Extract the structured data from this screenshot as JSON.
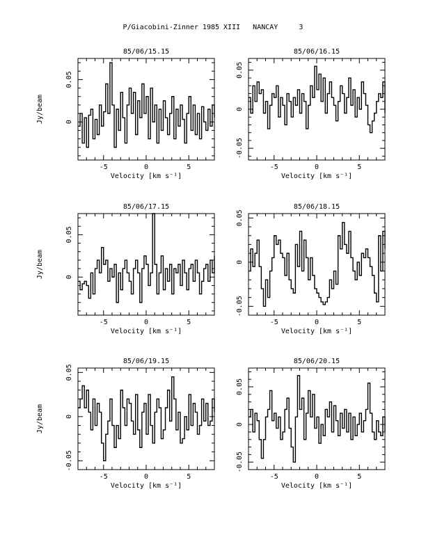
{
  "page": {
    "title": "P/Giacobini-Zinner 1985 XIII   NANCAY     3"
  },
  "chart_data": [
    {
      "type": "line",
      "title": "85/06/15.15",
      "xlabel": "Velocity [km s⁻¹]",
      "ylabel": "Jy/beam",
      "xlim": [
        -8,
        8
      ],
      "ylim": [
        -0.045,
        0.075
      ],
      "xticks": [
        -5,
        0,
        5
      ],
      "yticks": [
        0,
        0.05
      ],
      "ytick_labels": [
        "0",
        "0.05"
      ],
      "x_start": -8,
      "x_step": 0.25,
      "values": [
        -0.005,
        0.01,
        -0.025,
        0.005,
        -0.03,
        0.008,
        0.015,
        -0.02,
        0.003,
        -0.015,
        0.02,
        -0.005,
        0.012,
        0.045,
        0.01,
        0.07,
        0.02,
        -0.03,
        0.015,
        -0.01,
        0.035,
        0.005,
        -0.025,
        0.02,
        0.04,
        0.01,
        0.035,
        -0.015,
        0.025,
        0.005,
        0.045,
        0.01,
        0.03,
        -0.02,
        0.04,
        0.0,
        0.02,
        -0.025,
        0.015,
        -0.01,
        0.025,
        0.005,
        -0.015,
        0.01,
        0.03,
        -0.02,
        0.015,
        -0.005,
        0.02,
        0.003,
        -0.025,
        0.01,
        0.03,
        -0.01,
        0.02,
        -0.015,
        0.01,
        -0.02,
        0.018,
        0.0,
        -0.01,
        0.015,
        -0.005,
        0.02,
        0.005
      ]
    },
    {
      "type": "line",
      "title": "85/06/16.15",
      "xlabel": "Velocity [km s⁻¹]",
      "ylabel": "",
      "xlim": [
        -8,
        8
      ],
      "ylim": [
        -0.065,
        0.065
      ],
      "xticks": [
        -5,
        0,
        5
      ],
      "yticks": [
        -0.05,
        0,
        0.05
      ],
      "ytick_labels": [
        "-0.05",
        "0",
        "0.05"
      ],
      "x_start": -8,
      "x_step": 0.25,
      "values": [
        0.015,
        -0.005,
        0.03,
        0.01,
        0.035,
        0.02,
        0.025,
        -0.005,
        0.01,
        -0.025,
        0.005,
        0.02,
        0.015,
        0.03,
        -0.01,
        0.015,
        0.005,
        -0.02,
        0.02,
        0.01,
        -0.01,
        0.015,
        0.005,
        0.025,
        -0.005,
        0.02,
        0.01,
        -0.025,
        0.005,
        0.03,
        0.015,
        0.055,
        0.025,
        0.045,
        0.01,
        0.04,
        -0.005,
        0.02,
        0.035,
        0.015,
        0.005,
        -0.015,
        0.01,
        0.03,
        0.02,
        -0.005,
        0.015,
        0.04,
        0.005,
        0.025,
        -0.01,
        0.015,
        0.0,
        0.035,
        0.02,
        0.005,
        -0.02,
        -0.03,
        -0.015,
        -0.005,
        0.01,
        0.02,
        0.015,
        0.035,
        -0.005
      ]
    },
    {
      "type": "line",
      "title": "85/06/17.15",
      "xlabel": "Velocity [km s⁻¹]",
      "ylabel": "Jy/beam",
      "xlim": [
        -8,
        8
      ],
      "ylim": [
        -0.045,
        0.075
      ],
      "xticks": [
        -5,
        0,
        5
      ],
      "yticks": [
        0,
        0.05
      ],
      "ytick_labels": [
        "0",
        "0.05"
      ],
      "x_start": -8,
      "x_step": 0.25,
      "values": [
        -0.005,
        -0.015,
        -0.008,
        -0.005,
        -0.01,
        -0.025,
        0.005,
        -0.02,
        0.01,
        0.02,
        0.005,
        0.035,
        0.015,
        0.02,
        -0.005,
        0.01,
        0.0,
        0.015,
        -0.03,
        0.005,
        -0.015,
        0.01,
        0.02,
        0.005,
        -0.005,
        -0.02,
        0.01,
        0.02,
        0.005,
        -0.03,
        0.01,
        0.025,
        0.015,
        -0.01,
        0.005,
        0.075,
        0.015,
        -0.02,
        0.005,
        0.025,
        -0.015,
        0.01,
        -0.005,
        0.015,
        -0.02,
        0.01,
        0.005,
        0.015,
        -0.01,
        0.02,
        0.005,
        -0.015,
        0.01,
        0.015,
        -0.005,
        0.02,
        0.005,
        -0.02,
        -0.005,
        0.01,
        0.015,
        -0.005,
        0.02,
        0.005,
        0.025
      ]
    },
    {
      "type": "line",
      "title": "85/06/18.15",
      "xlabel": "Velocity [km s⁻¹]",
      "ylabel": "",
      "xlim": [
        -8,
        8
      ],
      "ylim": [
        -0.06,
        0.055
      ],
      "xticks": [
        -5,
        0,
        5
      ],
      "yticks": [
        -0.05,
        0,
        0.05
      ],
      "ytick_labels": [
        "-0.05",
        "0",
        "0.05"
      ],
      "x_start": -8,
      "x_step": 0.25,
      "values": [
        -0.01,
        0.015,
        -0.005,
        0.01,
        0.025,
        -0.005,
        -0.03,
        -0.05,
        -0.02,
        -0.04,
        -0.01,
        0.005,
        0.03,
        0.02,
        0.025,
        0.01,
        0.005,
        -0.015,
        0.01,
        -0.02,
        -0.03,
        -0.035,
        0.02,
        -0.005,
        0.035,
        -0.01,
        0.025,
        0.005,
        -0.02,
        0.005,
        -0.015,
        -0.03,
        -0.035,
        -0.04,
        -0.045,
        -0.048,
        -0.045,
        -0.04,
        -0.02,
        -0.03,
        -0.01,
        -0.025,
        0.03,
        0.015,
        0.045,
        0.02,
        0.01,
        0.035,
        0.005,
        -0.01,
        -0.02,
        0.0,
        -0.015,
        0.01,
        0.005,
        0.015,
        0.005,
        -0.005,
        -0.015,
        -0.035,
        -0.045,
        0.03,
        -0.01,
        0.035,
        0.015
      ]
    },
    {
      "type": "line",
      "title": "85/06/19.15",
      "xlabel": "Velocity [km s⁻¹]",
      "ylabel": "Jy/beam",
      "xlim": [
        -8,
        8
      ],
      "ylim": [
        -0.06,
        0.055
      ],
      "xticks": [
        -5,
        0,
        5
      ],
      "yticks": [
        -0.05,
        0,
        0.05
      ],
      "ytick_labels": [
        "-0.05",
        "0",
        "0.05"
      ],
      "x_start": -8,
      "x_step": 0.25,
      "values": [
        0.01,
        0.02,
        0.035,
        0.01,
        0.03,
        0.005,
        -0.015,
        0.02,
        -0.01,
        0.015,
        0.005,
        -0.03,
        -0.05,
        -0.02,
        -0.005,
        0.02,
        -0.01,
        -0.035,
        -0.01,
        -0.025,
        0.03,
        0.01,
        -0.01,
        0.02,
        0.015,
        -0.005,
        -0.02,
        0.025,
        -0.015,
        -0.035,
        0.005,
        0.015,
        -0.02,
        0.025,
        -0.01,
        -0.03,
        0.005,
        0.02,
        0.01,
        -0.025,
        -0.015,
        0.01,
        0.03,
        -0.005,
        0.045,
        0.02,
        -0.015,
        0.005,
        -0.03,
        -0.025,
        0.0,
        -0.015,
        0.025,
        -0.01,
        0.015,
        0.005,
        -0.02,
        -0.01,
        0.02,
        -0.005,
        0.015,
        -0.01,
        -0.005,
        0.02,
        0.005
      ]
    },
    {
      "type": "line",
      "title": "85/06/20.15",
      "xlabel": "Velocity [km s⁻¹]",
      "ylabel": "",
      "xlim": [
        -8,
        8
      ],
      "ylim": [
        -0.06,
        0.075
      ],
      "xticks": [
        -5,
        0,
        5
      ],
      "yticks": [
        -0.05,
        0,
        0.05
      ],
      "ytick_labels": [
        "-0.05",
        "0",
        "0.05"
      ],
      "x_start": -8,
      "x_step": 0.25,
      "values": [
        0.01,
        0.02,
        -0.01,
        0.015,
        0.005,
        -0.02,
        -0.045,
        -0.02,
        0.01,
        0.02,
        0.045,
        0.005,
        0.015,
        -0.005,
        0.01,
        -0.02,
        -0.01,
        0.02,
        0.035,
        -0.005,
        -0.03,
        -0.05,
        0.01,
        0.065,
        0.02,
        0.035,
        -0.02,
        0.015,
        0.045,
        0.01,
        0.04,
        -0.005,
        0.01,
        -0.025,
        0.0,
        -0.015,
        0.02,
        0.01,
        0.03,
        -0.01,
        0.025,
        0.005,
        -0.015,
        0.015,
        -0.005,
        0.02,
        -0.01,
        0.015,
        -0.02,
        0.01,
        -0.015,
        0.0,
        0.015,
        -0.01,
        0.005,
        0.02,
        0.055,
        0.015,
        -0.01,
        -0.02,
        0.005,
        -0.01,
        -0.015,
        0.01,
        -0.01
      ]
    }
  ]
}
